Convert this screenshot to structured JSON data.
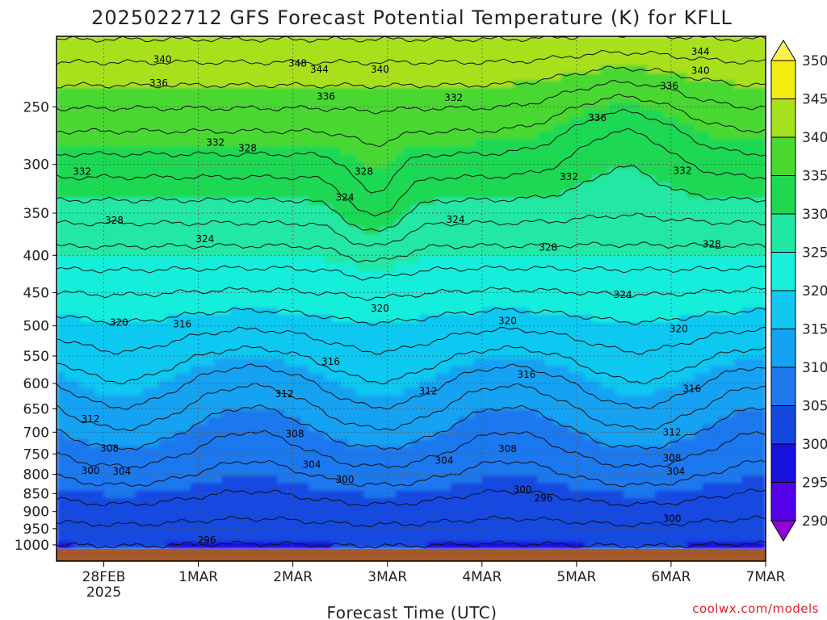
{
  "title": "2025022712 GFS Forecast Potential Temperature (K) for KFLL",
  "credit": "coolwx.com/models",
  "chart_data": {
    "type": "heatmap",
    "title": "2025022712 GFS Forecast Potential Temperature (K) for KFLL",
    "xlabel": "Forecast Time (UTC)",
    "ylabel": "",
    "x_ticks": [
      {
        "t": 0.5,
        "label": "28FEB",
        "sub": "2025"
      },
      {
        "t": 1.5,
        "label": "1MAR"
      },
      {
        "t": 2.5,
        "label": "2MAR"
      },
      {
        "t": 3.5,
        "label": "3MAR"
      },
      {
        "t": 4.5,
        "label": "4MAR"
      },
      {
        "t": 5.5,
        "label": "5MAR"
      },
      {
        "t": 6.5,
        "label": "6MAR"
      },
      {
        "t": 7.5,
        "label": "7MAR"
      }
    ],
    "xlim": [
      0,
      7.5
    ],
    "y_ticks": [
      250,
      300,
      350,
      400,
      450,
      500,
      550,
      600,
      650,
      700,
      750,
      800,
      850,
      900,
      950,
      1000
    ],
    "ylim": [
      200,
      1013
    ],
    "y_log": true,
    "y_reversed": true,
    "colorbar": {
      "levels": [
        290,
        295,
        300,
        305,
        310,
        315,
        320,
        325,
        330,
        335,
        340,
        345,
        350
      ],
      "colors": [
        "#9400d8",
        "#5200e8",
        "#1a10e0",
        "#1448e0",
        "#1f78ee",
        "#14a2f2",
        "#10c8f0",
        "#18eedc",
        "#20e8a4",
        "#1ed852",
        "#48d830",
        "#a8e01e",
        "#f2ec10",
        "#fff250"
      ]
    },
    "contour_labels": [
      {
        "t": 1.12,
        "p": 215,
        "label": "340"
      },
      {
        "t": 1.08,
        "p": 232,
        "label": "336"
      },
      {
        "t": 1.68,
        "p": 280,
        "label": "332"
      },
      {
        "t": 2.02,
        "p": 285,
        "label": "328"
      },
      {
        "t": 2.55,
        "p": 218,
        "label": "348"
      },
      {
        "t": 2.78,
        "p": 222,
        "label": "344"
      },
      {
        "t": 3.42,
        "p": 222,
        "label": "340"
      },
      {
        "t": 2.85,
        "p": 242,
        "label": "336"
      },
      {
        "t": 4.2,
        "p": 243,
        "label": "332"
      },
      {
        "t": 0.27,
        "p": 307,
        "label": "332"
      },
      {
        "t": 0.61,
        "p": 358,
        "label": "328"
      },
      {
        "t": 3.25,
        "p": 307,
        "label": "328"
      },
      {
        "t": 3.05,
        "p": 333,
        "label": "324"
      },
      {
        "t": 1.57,
        "p": 380,
        "label": "324"
      },
      {
        "t": 4.22,
        "p": 357,
        "label": "324"
      },
      {
        "t": 5.42,
        "p": 312,
        "label": "332"
      },
      {
        "t": 5.72,
        "p": 259,
        "label": "336"
      },
      {
        "t": 6.48,
        "p": 234,
        "label": "336"
      },
      {
        "t": 6.81,
        "p": 223,
        "label": "340"
      },
      {
        "t": 6.81,
        "p": 210,
        "label": "344"
      },
      {
        "t": 6.62,
        "p": 306,
        "label": "332"
      },
      {
        "t": 5.2,
        "p": 390,
        "label": "328"
      },
      {
        "t": 6.93,
        "p": 386,
        "label": "328"
      },
      {
        "t": 5.99,
        "p": 453,
        "label": "324"
      },
      {
        "t": 3.42,
        "p": 473,
        "label": "320"
      },
      {
        "t": 0.66,
        "p": 495,
        "label": "320"
      },
      {
        "t": 1.33,
        "p": 497,
        "label": "316"
      },
      {
        "t": 4.77,
        "p": 492,
        "label": "320"
      },
      {
        "t": 6.58,
        "p": 505,
        "label": "320"
      },
      {
        "t": 2.9,
        "p": 560,
        "label": "316"
      },
      {
        "t": 4.97,
        "p": 583,
        "label": "316"
      },
      {
        "t": 6.72,
        "p": 610,
        "label": "316"
      },
      {
        "t": 2.41,
        "p": 620,
        "label": "312"
      },
      {
        "t": 3.93,
        "p": 615,
        "label": "312"
      },
      {
        "t": 0.36,
        "p": 671,
        "label": "312"
      },
      {
        "t": 6.51,
        "p": 700,
        "label": "312"
      },
      {
        "t": 2.52,
        "p": 704,
        "label": "308"
      },
      {
        "t": 0.56,
        "p": 737,
        "label": "308"
      },
      {
        "t": 4.77,
        "p": 738,
        "label": "308"
      },
      {
        "t": 6.51,
        "p": 760,
        "label": "308"
      },
      {
        "t": 2.7,
        "p": 776,
        "label": "304"
      },
      {
        "t": 4.1,
        "p": 766,
        "label": "304"
      },
      {
        "t": 6.55,
        "p": 793,
        "label": "304"
      },
      {
        "t": 0.36,
        "p": 791,
        "label": "300"
      },
      {
        "t": 0.69,
        "p": 793,
        "label": "304"
      },
      {
        "t": 3.05,
        "p": 813,
        "label": "300"
      },
      {
        "t": 4.93,
        "p": 840,
        "label": "300"
      },
      {
        "t": 5.15,
        "p": 862,
        "label": "296"
      },
      {
        "t": 6.51,
        "p": 920,
        "label": "300"
      },
      {
        "t": 1.59,
        "p": 985,
        "label": "296"
      }
    ]
  }
}
